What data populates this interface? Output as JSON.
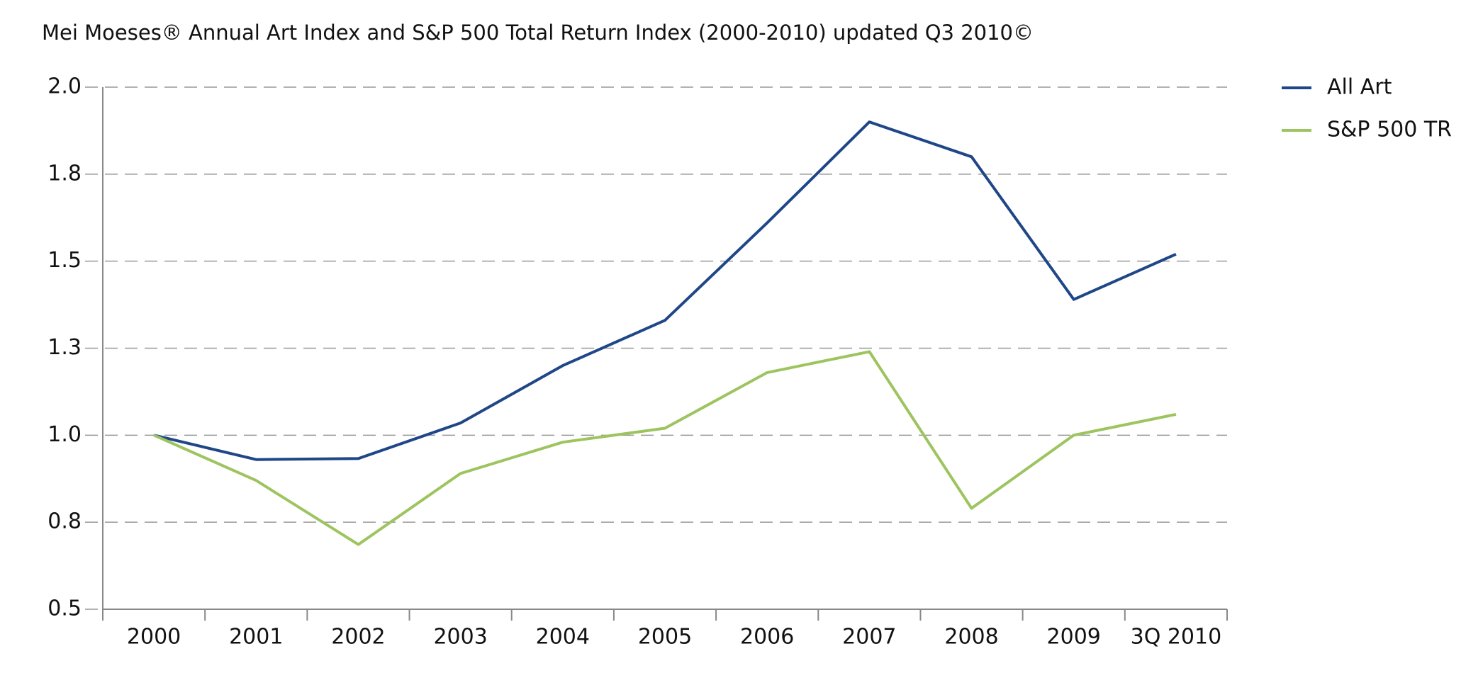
{
  "chart_data": {
    "type": "line",
    "title": "Mei Moeses® Annual Art Index and S&P 500 Total Return Index (2000-2010) updated Q3 2010©",
    "categories": [
      "2000",
      "2001",
      "2002",
      "2003",
      "2004",
      "2005",
      "2006",
      "2007",
      "2008",
      "2009",
      "3Q 2010"
    ],
    "series": [
      {
        "name": "All Art",
        "color": "#1f4788",
        "values": [
          1.0,
          0.93,
          0.933,
          1.035,
          1.2,
          1.33,
          1.61,
          1.9,
          1.8,
          1.39,
          1.52
        ]
      },
      {
        "name": "S&P 500 TR",
        "color": "#9dc45f",
        "values": [
          1.0,
          0.87,
          0.686,
          0.89,
          0.98,
          1.02,
          1.18,
          1.24,
          0.79,
          1.0,
          1.06
        ]
      }
    ],
    "ylim": [
      0.5,
      2.0
    ],
    "yticks": [
      {
        "value": 0.5,
        "label": "0.5"
      },
      {
        "value": 0.75,
        "label": "0.8"
      },
      {
        "value": 1.0,
        "label": "1.0"
      },
      {
        "value": 1.25,
        "label": "1.3"
      },
      {
        "value": 1.5,
        "label": "1.5"
      },
      {
        "value": 1.75,
        "label": "1.8"
      },
      {
        "value": 2.0,
        "label": "2.0"
      }
    ],
    "grid": true,
    "legend": "right"
  }
}
